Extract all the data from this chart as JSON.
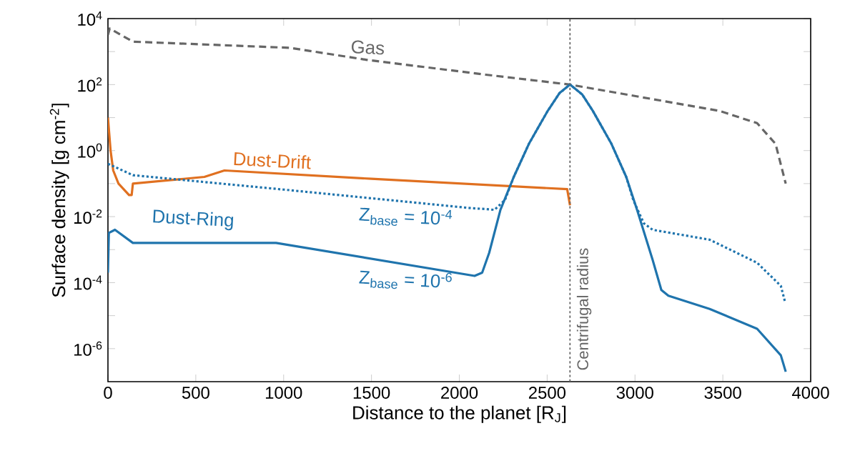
{
  "chart_data": {
    "type": "line",
    "xlabel": "Distance to the planet [R$_{J}$]",
    "ylabel": "Surface density [g cm$^{-2}$]",
    "log": "y",
    "xlim": [
      0,
      4000
    ],
    "ylim": [
      1e-07,
      10000
    ],
    "xticks": [
      0,
      500,
      1000,
      1500,
      2000,
      2500,
      3000,
      3500,
      4000
    ],
    "yticks": [
      {
        "value": 1e-06,
        "label": "10$^{-6}$"
      },
      {
        "value": 1e-05,
        "label": null
      },
      {
        "value": 0.0001,
        "label": "10$^{-4}$"
      },
      {
        "value": 0.001,
        "label": null
      },
      {
        "value": 0.01,
        "label": "10$^{-2}$"
      },
      {
        "value": 0.1,
        "label": null
      },
      {
        "value": 1,
        "label": "10$^{0}$"
      },
      {
        "value": 10,
        "label": null
      },
      {
        "value": 100,
        "label": "10$^{2}$"
      },
      {
        "value": 1000,
        "label": null
      },
      {
        "value": 10000,
        "label": "10$^{4}$"
      }
    ],
    "series": [
      {
        "name": "Gas",
        "color": "#666666",
        "line_style": "dashed",
        "x": [
          0,
          10,
          142,
          1037,
          1475,
          2150,
          2630,
          3480,
          3695,
          3800,
          3858
        ],
        "values": [
          3200,
          5000,
          2000,
          1300,
          560,
          200,
          100,
          16,
          6.8,
          1.6,
          0.1
        ]
      },
      {
        "name": "Dust-Drift",
        "color": "#e07020",
        "line_style": "solid",
        "x": [
          0,
          15,
          30,
          60,
          120,
          135,
          142,
          549,
          663,
          1500,
          2614,
          2630
        ],
        "values": [
          10,
          1,
          0.25,
          0.1,
          0.045,
          0.045,
          0.1,
          0.16,
          0.25,
          0.14,
          0.068,
          0.022
        ]
      },
      {
        "name": "Z$_{base}$ = 10$^{-4}$",
        "color": "#1f74ad",
        "line_style": "dotted",
        "x": [
          0,
          142,
          1000,
          2070,
          2150,
          2200,
          2260,
          2310,
          2396,
          2500,
          2570,
          2630,
          2700,
          2760,
          2866,
          2950,
          2990,
          3050,
          3100,
          3425,
          3695,
          3830,
          3855
        ],
        "values": [
          0.4,
          0.18,
          0.066,
          0.018,
          0.017,
          0.016,
          0.032,
          0.16,
          1.6,
          15,
          55,
          100,
          50,
          16,
          1.6,
          0.16,
          0.032,
          0.0063,
          0.004,
          0.002,
          0.0004,
          8e-05,
          2.5e-05
        ]
      },
      {
        "name": "Z$_{base}$ = 10$^{-6}$",
        "color": "#1f74ad",
        "line_style": "solid",
        "x": [
          0,
          5,
          40,
          142,
          957,
          2087,
          2130,
          2170,
          2234,
          2310,
          2396,
          2500,
          2570,
          2630,
          2700,
          2760,
          2866,
          2950,
          3012,
          3100,
          3150,
          3190,
          3425,
          3695,
          3830,
          3858
        ],
        "values": [
          0.0002,
          0.0032,
          0.004,
          0.0016,
          0.0016,
          0.00016,
          0.0002,
          0.0008,
          0.016,
          0.16,
          1.6,
          15,
          55,
          100,
          50,
          16,
          1.6,
          0.16,
          0.016,
          0.0005,
          6e-05,
          4e-05,
          1.6e-05,
          4e-06,
          6.3e-07,
          2e-07
        ]
      }
    ],
    "ref_lines": [
      {
        "axis": "x",
        "value": 2630,
        "label": "Centrifugal radius",
        "color": "#666666",
        "line_style": "dotted"
      }
    ],
    "annotations": [
      "Dust-Ring"
    ]
  }
}
